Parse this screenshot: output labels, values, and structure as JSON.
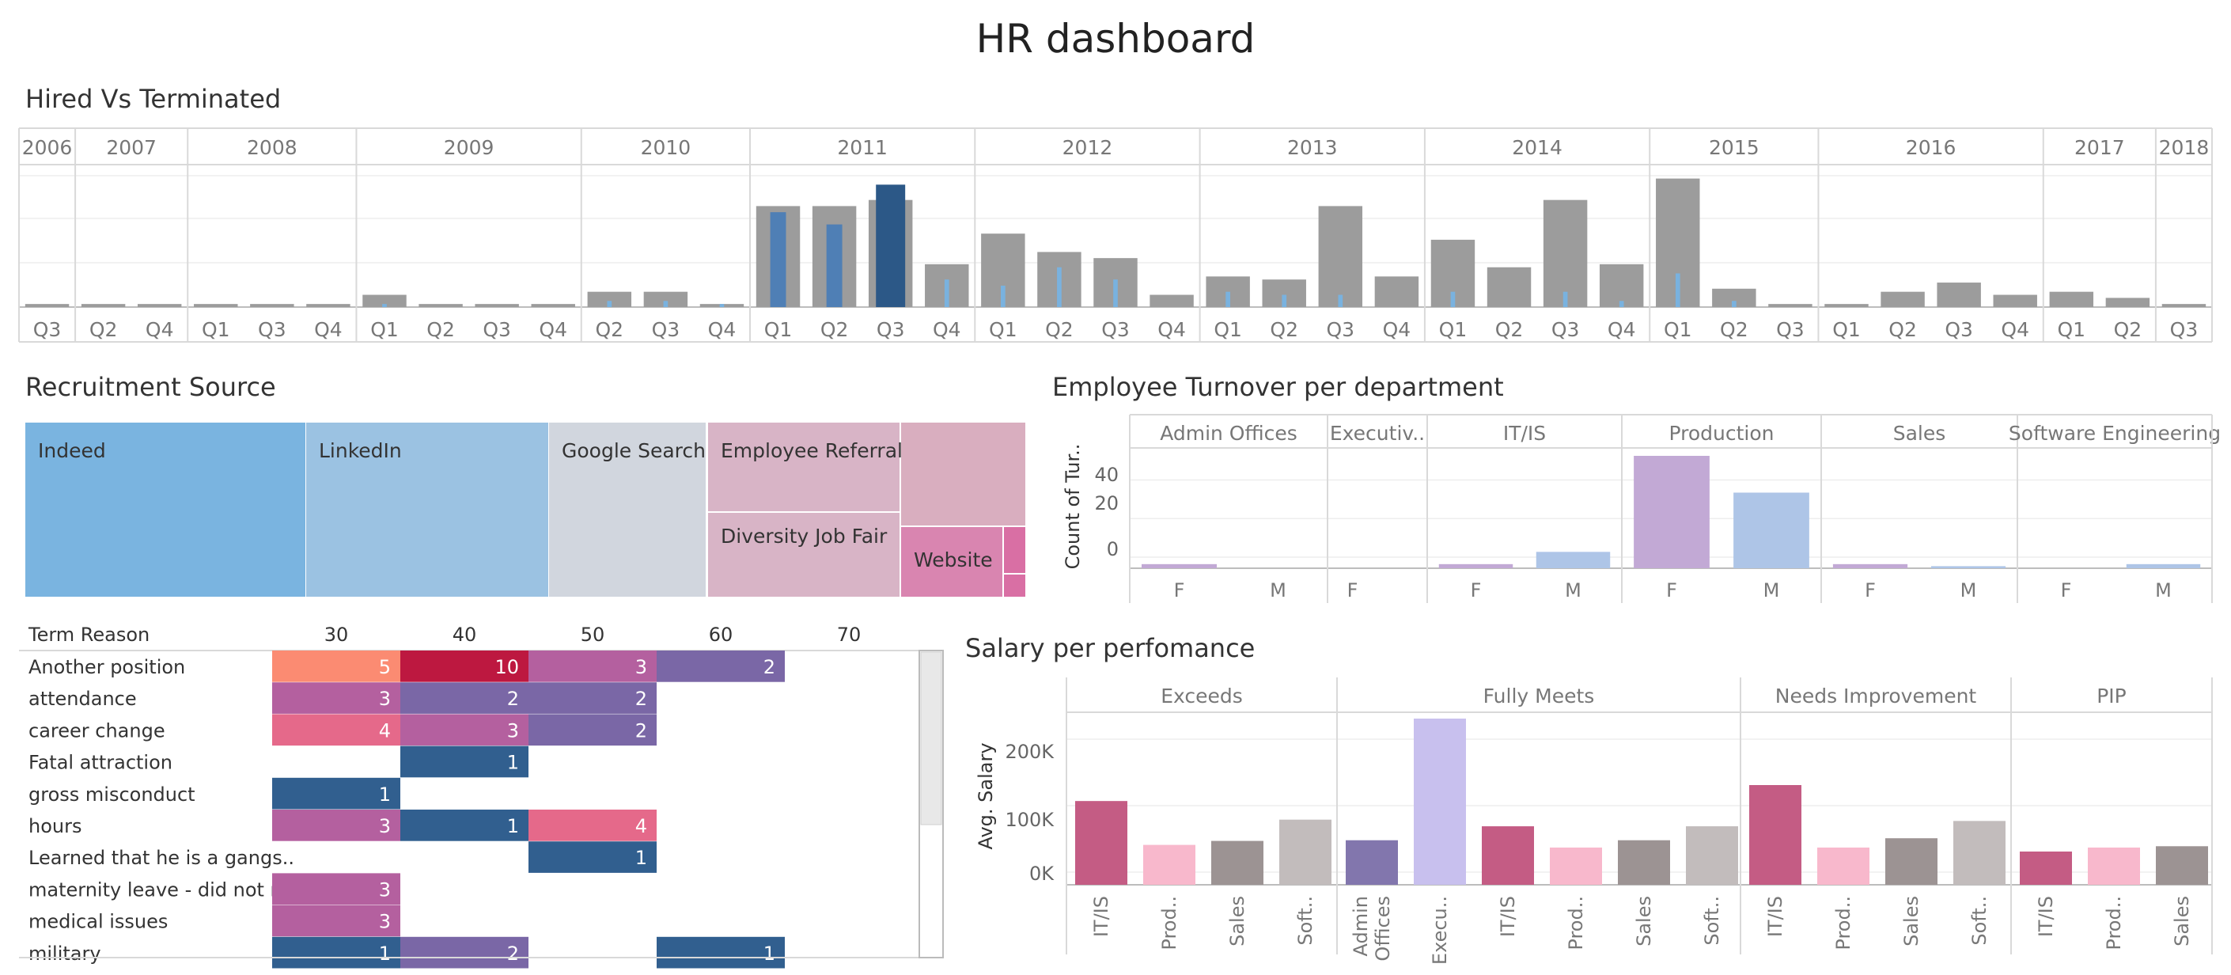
{
  "page_title": "HR dashboard",
  "hired_vs_terminated": {
    "title": "Hired Vs Terminated",
    "hired_color": "#9c9c9c",
    "terminated_colors": {
      "light": "#79b2df",
      "mid": "#4f7fb5",
      "dark": "#2c5887"
    },
    "years": [
      {
        "year": "2006",
        "quarters": [
          "Q3"
        ]
      },
      {
        "year": "2007",
        "quarters": [
          "Q2",
          "Q4"
        ]
      },
      {
        "year": "2008",
        "quarters": [
          "Q1",
          "Q3",
          "Q4"
        ]
      },
      {
        "year": "2009",
        "quarters": [
          "Q1",
          "Q2",
          "Q3",
          "Q4"
        ]
      },
      {
        "year": "2010",
        "quarters": [
          "Q2",
          "Q3",
          "Q4"
        ]
      },
      {
        "year": "2011",
        "quarters": [
          "Q1",
          "Q2",
          "Q3",
          "Q4"
        ]
      },
      {
        "year": "2012",
        "quarters": [
          "Q1",
          "Q2",
          "Q3",
          "Q4"
        ]
      },
      {
        "year": "2013",
        "quarters": [
          "Q1",
          "Q2",
          "Q3",
          "Q4"
        ]
      },
      {
        "year": "2014",
        "quarters": [
          "Q1",
          "Q2",
          "Q3",
          "Q4"
        ]
      },
      {
        "year": "2015",
        "quarters": [
          "Q1",
          "Q2",
          "Q3"
        ]
      },
      {
        "year": "2016",
        "quarters": [
          "Q1",
          "Q2",
          "Q3",
          "Q4"
        ]
      },
      {
        "year": "2017",
        "quarters": [
          "Q1",
          "Q2"
        ]
      },
      {
        "year": "2018",
        "quarters": [
          "Q3"
        ]
      }
    ],
    "chart_data": {
      "type": "bar",
      "series": [
        {
          "name": "Hired",
          "values": [
            1,
            1,
            1,
            1,
            1,
            1,
            4,
            1,
            1,
            1,
            5,
            5,
            1,
            33,
            33,
            35,
            14,
            24,
            18,
            16,
            4,
            10,
            9,
            33,
            10,
            22,
            13,
            35,
            14,
            42,
            6,
            1,
            1,
            5,
            8,
            4,
            5,
            3,
            1
          ]
        },
        {
          "name": "Terminated",
          "values": [
            0,
            0,
            0,
            0,
            0,
            0,
            1,
            0,
            0,
            0,
            2,
            2,
            1,
            31,
            27,
            40,
            9,
            7,
            13,
            9,
            0,
            5,
            4,
            4,
            0,
            5,
            0,
            5,
            2,
            11,
            2,
            0,
            0,
            0,
            0,
            0,
            0,
            0,
            0
          ]
        }
      ],
      "ylim": [
        0,
        45
      ]
    }
  },
  "recruitment_source": {
    "title": "Recruitment Source",
    "tiles": [
      {
        "label": "Indeed",
        "color": "#7ab4e0"
      },
      {
        "label": "LinkedIn",
        "color": "#9bc2e2"
      },
      {
        "label": "Google Search",
        "color": "#d1d6de"
      },
      {
        "label": "Employee Referral",
        "color": "#d8b4c6"
      },
      {
        "label": "Diversity Job Fair",
        "color": "#d8b4c6"
      },
      {
        "label": "Website",
        "color": "#d985b0"
      },
      {
        "label": "",
        "color": "#d9aebf"
      },
      {
        "label": "",
        "color": "#d96fa4"
      },
      {
        "label": "",
        "color": "#d96fa4"
      }
    ]
  },
  "term_reason": {
    "header": "Term Reason",
    "columns": [
      "30",
      "40",
      "50",
      "60",
      "70"
    ],
    "rows": [
      {
        "label": "Another position",
        "cells": [
          {
            "v": "5",
            "c": "#fb8b72"
          },
          {
            "v": "10",
            "c": "#bd1840"
          },
          {
            "v": "3",
            "c": "#b4609f"
          },
          {
            "v": "2",
            "c": "#7a67a6"
          }
        ]
      },
      {
        "label": "attendance",
        "cells": [
          {
            "v": "3",
            "c": "#b4609f"
          },
          {
            "v": "2",
            "c": "#7a67a6"
          },
          {
            "v": "2",
            "c": "#7a67a6"
          }
        ]
      },
      {
        "label": "career change",
        "cells": [
          {
            "v": "4",
            "c": "#e5698a"
          },
          {
            "v": "3",
            "c": "#b4609f"
          },
          {
            "v": "2",
            "c": "#7a67a6"
          }
        ]
      },
      {
        "label": "Fatal attraction",
        "cells": [
          null,
          {
            "v": "1",
            "c": "#315f8f"
          }
        ]
      },
      {
        "label": "gross misconduct",
        "cells": [
          {
            "v": "1",
            "c": "#315f8f"
          }
        ]
      },
      {
        "label": "hours",
        "cells": [
          {
            "v": "3",
            "c": "#b4609f"
          },
          {
            "v": "1",
            "c": "#315f8f"
          },
          {
            "v": "4",
            "c": "#e5698a"
          }
        ]
      },
      {
        "label": "Learned that he is a gangs..",
        "cells": [
          null,
          null,
          {
            "v": "1",
            "c": "#315f8f"
          }
        ]
      },
      {
        "label": "maternity leave - did not r..",
        "cells": [
          {
            "v": "3",
            "c": "#b4609f"
          }
        ]
      },
      {
        "label": "medical issues",
        "cells": [
          {
            "v": "3",
            "c": "#b4609f"
          }
        ]
      },
      {
        "label": "military",
        "cells": [
          {
            "v": "1",
            "c": "#315f8f"
          },
          {
            "v": "2",
            "c": "#7a67a6"
          },
          null,
          {
            "v": "1",
            "c": "#315f8f"
          }
        ]
      }
    ]
  },
  "turnover": {
    "title": "Employee Turnover per department",
    "ylabel": "Count of Tur..",
    "yticks": [
      "40",
      "20",
      "0"
    ],
    "colors": {
      "F": "#c2a9d5",
      "M": "#aec5e7"
    },
    "chart_data": {
      "type": "bar",
      "ylim": [
        -2,
        60
      ],
      "departments": [
        {
          "name": "Admin Offices",
          "bars": [
            {
              "g": "F",
              "v": 2
            },
            {
              "g": "M",
              "v": 0
            }
          ]
        },
        {
          "name": "Executiv..",
          "bars": [
            {
              "g": "F",
              "v": 0
            }
          ]
        },
        {
          "name": "IT/IS",
          "bars": [
            {
              "g": "F",
              "v": 2
            },
            {
              "g": "M",
              "v": 8
            }
          ]
        },
        {
          "name": "Production",
          "bars": [
            {
              "g": "F",
              "v": 55
            },
            {
              "g": "M",
              "v": 37
            }
          ]
        },
        {
          "name": "Sales",
          "bars": [
            {
              "g": "F",
              "v": 2
            },
            {
              "g": "M",
              "v": 1
            }
          ]
        },
        {
          "name": "Software Engineering",
          "bars": [
            {
              "g": "F",
              "v": 0
            },
            {
              "g": "M",
              "v": 2
            }
          ]
        }
      ]
    }
  },
  "salary": {
    "title": "Salary per perfomance",
    "ylabel": "Avg. Salary",
    "yticks": [
      "200K",
      "100K",
      "0K"
    ],
    "chart_data": {
      "type": "bar",
      "ylim": [
        -20000,
        260000
      ],
      "groups": [
        {
          "name": "Exceeds",
          "bars": [
            {
              "dept": "IT/IS",
              "v": 126000,
              "c": "#c45c84"
            },
            {
              "dept": "Prod..",
              "v": 60000,
              "c": "#f8b8cc"
            },
            {
              "dept": "Sales",
              "v": 66000,
              "c": "#9c9393"
            },
            {
              "dept": "Soft..",
              "v": 98000,
              "c": "#c2bcbc"
            }
          ]
        },
        {
          "name": "Fully Meets",
          "bars": [
            {
              "dept": "Admin\nOffices",
              "v": 67000,
              "c": "#8276ad"
            },
            {
              "dept": "Execu..",
              "v": 250000,
              "c": "#c8c0ee"
            },
            {
              "dept": "IT/IS",
              "v": 88000,
              "c": "#c45c84"
            },
            {
              "dept": "Prod..",
              "v": 56000,
              "c": "#f8b8cc"
            },
            {
              "dept": "Sales",
              "v": 67000,
              "c": "#9c9393"
            },
            {
              "dept": "Soft..",
              "v": 88000,
              "c": "#c2bcbc"
            }
          ]
        },
        {
          "name": "Needs Improvement",
          "bars": [
            {
              "dept": "IT/IS",
              "v": 150000,
              "c": "#c45c84"
            },
            {
              "dept": "Prod..",
              "v": 56000,
              "c": "#f8b8cc"
            },
            {
              "dept": "Sales",
              "v": 70000,
              "c": "#9c9393"
            },
            {
              "dept": "Soft..",
              "v": 96000,
              "c": "#c2bcbc"
            }
          ]
        },
        {
          "name": "PIP",
          "bars": [
            {
              "dept": "IT/IS",
              "v": 50000,
              "c": "#c45c84"
            },
            {
              "dept": "Prod..",
              "v": 56000,
              "c": "#f8b8cc"
            },
            {
              "dept": "Sales",
              "v": 58000,
              "c": "#9c9393"
            }
          ]
        }
      ]
    }
  }
}
